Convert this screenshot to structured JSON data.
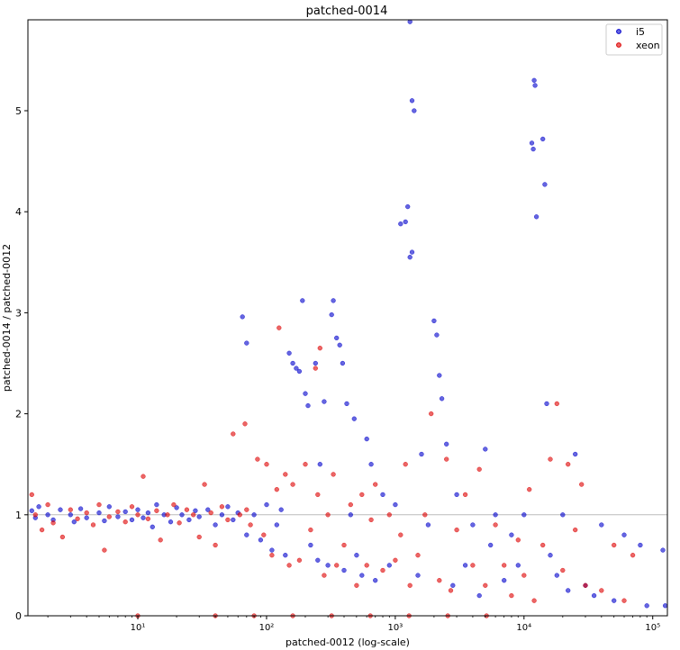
{
  "chart_data": {
    "type": "scatter",
    "title": "patched-0014",
    "xlabel": "patched-0012 (log-scale)",
    "ylabel": "patched-0014 / patched-0012",
    "x_scale": "log",
    "xlim": [
      1.4,
      130000
    ],
    "ylim": [
      0,
      5.9
    ],
    "grid": false,
    "legend_position": "top-right",
    "x_ticks": [
      {
        "value": 10,
        "label": "10¹"
      },
      {
        "value": 100,
        "label": "10²"
      },
      {
        "value": 1000,
        "label": "10³"
      },
      {
        "value": 10000,
        "label": "10⁴"
      },
      {
        "value": 100000,
        "label": "10⁵"
      }
    ],
    "y_ticks": [
      {
        "value": 0,
        "label": "0"
      },
      {
        "value": 1,
        "label": "1"
      },
      {
        "value": 2,
        "label": "2"
      },
      {
        "value": 3,
        "label": "3"
      },
      {
        "value": 4,
        "label": "4"
      },
      {
        "value": 5,
        "label": "5"
      }
    ],
    "reference_line": {
      "y": 1,
      "color": "#bbbbbb"
    },
    "series": [
      {
        "name": "i5",
        "color": "#0000cc",
        "points": [
          [
            1.5,
            1.04
          ],
          [
            1.6,
            0.97
          ],
          [
            1.7,
            1.08
          ],
          [
            2.0,
            1.0
          ],
          [
            2.2,
            0.95
          ],
          [
            2.5,
            1.05
          ],
          [
            3.0,
            1.0
          ],
          [
            3.2,
            0.93
          ],
          [
            3.6,
            1.06
          ],
          [
            4.0,
            0.97
          ],
          [
            5.0,
            1.02
          ],
          [
            5.5,
            0.94
          ],
          [
            6.0,
            1.08
          ],
          [
            7.0,
            0.98
          ],
          [
            8.0,
            1.03
          ],
          [
            9.0,
            0.95
          ],
          [
            10,
            1.05
          ],
          [
            11,
            0.97
          ],
          [
            12,
            1.02
          ],
          [
            13,
            0.88
          ],
          [
            14,
            1.1
          ],
          [
            16,
            1.0
          ],
          [
            18,
            0.93
          ],
          [
            20,
            1.07
          ],
          [
            22,
            1.0
          ],
          [
            25,
            0.95
          ],
          [
            28,
            1.04
          ],
          [
            30,
            0.98
          ],
          [
            35,
            1.05
          ],
          [
            40,
            0.9
          ],
          [
            45,
            1.0
          ],
          [
            50,
            1.08
          ],
          [
            55,
            0.95
          ],
          [
            60,
            1.02
          ],
          [
            65,
            2.96
          ],
          [
            70,
            2.7
          ],
          [
            70,
            0.8
          ],
          [
            80,
            1.0
          ],
          [
            90,
            0.75
          ],
          [
            100,
            1.1
          ],
          [
            110,
            0.65
          ],
          [
            120,
            0.9
          ],
          [
            130,
            1.05
          ],
          [
            140,
            0.6
          ],
          [
            150,
            2.6
          ],
          [
            160,
            2.5
          ],
          [
            170,
            2.45
          ],
          [
            180,
            2.42
          ],
          [
            190,
            3.12
          ],
          [
            200,
            2.2
          ],
          [
            210,
            2.08
          ],
          [
            220,
            0.7
          ],
          [
            240,
            2.5
          ],
          [
            250,
            0.55
          ],
          [
            260,
            1.5
          ],
          [
            280,
            2.12
          ],
          [
            300,
            0.5
          ],
          [
            320,
            2.98
          ],
          [
            330,
            3.12
          ],
          [
            350,
            2.75
          ],
          [
            370,
            2.68
          ],
          [
            390,
            2.5
          ],
          [
            400,
            0.45
          ],
          [
            420,
            2.1
          ],
          [
            450,
            1.0
          ],
          [
            480,
            1.95
          ],
          [
            500,
            0.6
          ],
          [
            550,
            0.4
          ],
          [
            600,
            1.75
          ],
          [
            650,
            1.5
          ],
          [
            700,
            0.35
          ],
          [
            800,
            1.2
          ],
          [
            900,
            0.5
          ],
          [
            1000,
            1.1
          ],
          [
            1100,
            3.88
          ],
          [
            1200,
            3.9
          ],
          [
            1250,
            4.05
          ],
          [
            1300,
            3.55
          ],
          [
            1350,
            3.6
          ],
          [
            1300,
            5.88
          ],
          [
            1350,
            5.1
          ],
          [
            1400,
            5.0
          ],
          [
            1500,
            0.4
          ],
          [
            1600,
            1.6
          ],
          [
            1800,
            0.9
          ],
          [
            2000,
            2.92
          ],
          [
            2100,
            2.78
          ],
          [
            2200,
            2.38
          ],
          [
            2300,
            2.15
          ],
          [
            2500,
            1.7
          ],
          [
            2800,
            0.3
          ],
          [
            3000,
            1.2
          ],
          [
            3500,
            0.5
          ],
          [
            4000,
            0.9
          ],
          [
            4500,
            0.2
          ],
          [
            5000,
            1.65
          ],
          [
            5500,
            0.7
          ],
          [
            6000,
            1.0
          ],
          [
            7000,
            0.35
          ],
          [
            8000,
            0.8
          ],
          [
            9000,
            0.5
          ],
          [
            10000,
            1.0
          ],
          [
            11500,
            4.68
          ],
          [
            11800,
            4.62
          ],
          [
            12000,
            5.3
          ],
          [
            12200,
            5.25
          ],
          [
            12500,
            3.95
          ],
          [
            14000,
            4.72
          ],
          [
            14500,
            4.27
          ],
          [
            15000,
            2.1
          ],
          [
            16000,
            0.6
          ],
          [
            18000,
            0.4
          ],
          [
            20000,
            1.0
          ],
          [
            22000,
            0.25
          ],
          [
            25000,
            1.6
          ],
          [
            30000,
            0.3
          ],
          [
            35000,
            0.2
          ],
          [
            40000,
            0.9
          ],
          [
            50000,
            0.15
          ],
          [
            60000,
            0.8
          ],
          [
            80000,
            0.7
          ],
          [
            90000,
            0.1
          ],
          [
            120000,
            0.65
          ],
          [
            125000,
            0.1
          ]
        ]
      },
      {
        "name": "xeon",
        "color": "#dd0000",
        "points": [
          [
            1.5,
            1.2
          ],
          [
            1.6,
            1.0
          ],
          [
            1.8,
            0.85
          ],
          [
            2.0,
            1.1
          ],
          [
            2.2,
            0.92
          ],
          [
            2.6,
            0.78
          ],
          [
            3.0,
            1.05
          ],
          [
            3.4,
            0.96
          ],
          [
            4.0,
            1.02
          ],
          [
            4.5,
            0.9
          ],
          [
            5.0,
            1.1
          ],
          [
            5.5,
            0.65
          ],
          [
            6.0,
            0.98
          ],
          [
            7.0,
            1.03
          ],
          [
            8.0,
            0.93
          ],
          [
            9.0,
            1.08
          ],
          [
            10,
            1.0
          ],
          [
            11,
            1.38
          ],
          [
            12,
            0.96
          ],
          [
            14,
            1.04
          ],
          [
            15,
            0.75
          ],
          [
            17,
            1.0
          ],
          [
            19,
            1.1
          ],
          [
            21,
            0.92
          ],
          [
            24,
            1.05
          ],
          [
            27,
            1.0
          ],
          [
            30,
            0.78
          ],
          [
            33,
            1.3
          ],
          [
            37,
            1.02
          ],
          [
            40,
            0.7
          ],
          [
            45,
            1.08
          ],
          [
            50,
            0.95
          ],
          [
            55,
            1.8
          ],
          [
            62,
            1.0
          ],
          [
            68,
            1.9
          ],
          [
            70,
            1.05
          ],
          [
            75,
            0.9
          ],
          [
            85,
            1.55
          ],
          [
            95,
            0.8
          ],
          [
            100,
            1.5
          ],
          [
            110,
            0.6
          ],
          [
            120,
            1.25
          ],
          [
            125,
            2.85
          ],
          [
            140,
            1.4
          ],
          [
            150,
            0.5
          ],
          [
            160,
            1.3
          ],
          [
            180,
            0.55
          ],
          [
            200,
            1.5
          ],
          [
            220,
            0.85
          ],
          [
            240,
            2.45
          ],
          [
            250,
            1.2
          ],
          [
            260,
            2.65
          ],
          [
            280,
            0.4
          ],
          [
            300,
            1.0
          ],
          [
            330,
            1.4
          ],
          [
            350,
            0.5
          ],
          [
            400,
            0.7
          ],
          [
            450,
            1.1
          ],
          [
            500,
            0.3
          ],
          [
            550,
            1.2
          ],
          [
            600,
            0.5
          ],
          [
            650,
            0.95
          ],
          [
            700,
            1.3
          ],
          [
            800,
            0.45
          ],
          [
            900,
            1.0
          ],
          [
            1000,
            0.55
          ],
          [
            1100,
            0.8
          ],
          [
            1200,
            1.5
          ],
          [
            1300,
            0.3
          ],
          [
            1500,
            0.6
          ],
          [
            1700,
            1.0
          ],
          [
            1900,
            2.0
          ],
          [
            2200,
            0.35
          ],
          [
            2500,
            1.55
          ],
          [
            2700,
            0.25
          ],
          [
            3000,
            0.85
          ],
          [
            3500,
            1.2
          ],
          [
            4000,
            0.5
          ],
          [
            4500,
            1.45
          ],
          [
            5000,
            0.3
          ],
          [
            6000,
            0.9
          ],
          [
            7000,
            0.5
          ],
          [
            8000,
            0.2
          ],
          [
            9000,
            0.75
          ],
          [
            10000,
            0.4
          ],
          [
            11000,
            1.25
          ],
          [
            12000,
            0.15
          ],
          [
            14000,
            0.7
          ],
          [
            16000,
            1.55
          ],
          [
            18000,
            2.1
          ],
          [
            20000,
            0.45
          ],
          [
            22000,
            1.5
          ],
          [
            25000,
            0.85
          ],
          [
            28000,
            1.3
          ],
          [
            30000,
            0.3
          ],
          [
            40000,
            0.25
          ],
          [
            50000,
            0.7
          ],
          [
            60000,
            0.15
          ],
          [
            70000,
            0.6
          ],
          [
            10,
            0.0
          ],
          [
            40,
            0.0
          ],
          [
            80,
            0.0
          ],
          [
            160,
            0.0
          ],
          [
            320,
            0.0
          ],
          [
            640,
            0.0
          ],
          [
            1280,
            0.0
          ],
          [
            2560,
            0.0
          ],
          [
            5120,
            0.0
          ]
        ]
      }
    ]
  }
}
